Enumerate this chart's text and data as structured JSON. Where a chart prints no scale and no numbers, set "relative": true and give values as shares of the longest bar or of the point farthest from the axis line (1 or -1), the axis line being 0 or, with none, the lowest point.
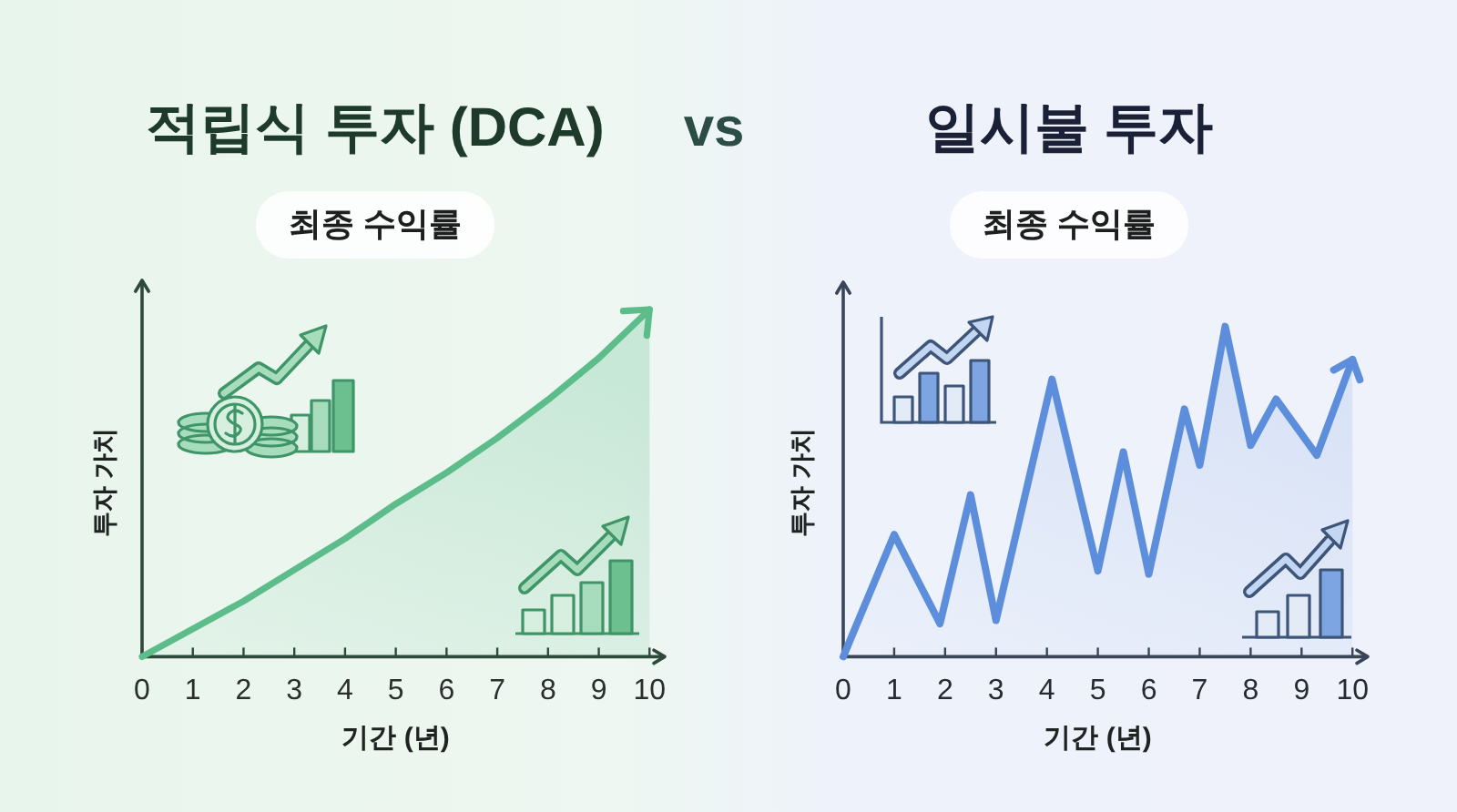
{
  "chart_data": [
    {
      "type": "area",
      "title": "적립식 투자 (DCA)",
      "subtitle": "최종 수익률",
      "xlabel": "기간 (년)",
      "ylabel": "투자 가치",
      "annotations": [
        "vs"
      ],
      "relative": true,
      "color": "#5cbd8b",
      "x": [
        0,
        1,
        2,
        3,
        4,
        5,
        6,
        7,
        8,
        9,
        10
      ],
      "values": [
        0,
        0.08,
        0.16,
        0.25,
        0.34,
        0.44,
        0.53,
        0.63,
        0.74,
        0.86,
        1
      ],
      "xlim": [
        0,
        10.3
      ],
      "xticks": [
        0,
        1,
        2,
        3,
        4,
        5,
        6,
        7,
        8,
        9,
        10
      ]
    },
    {
      "type": "area",
      "title": "일시불 투자",
      "subtitle": "최종 수익률",
      "xlabel": "기간 (년)",
      "ylabel": "투자 가치",
      "relative": true,
      "color": "#5c8edb",
      "x": [
        0,
        1,
        1.9,
        2.5,
        3,
        4.1,
        5,
        5.5,
        6,
        6.7,
        7,
        7.5,
        8,
        8.5,
        9.3,
        10
      ],
      "values": [
        0,
        0.37,
        0.1,
        0.49,
        0.11,
        0.84,
        0.26,
        0.62,
        0.25,
        0.75,
        0.58,
        1,
        0.64,
        0.78,
        0.61,
        0.9
      ],
      "xlim": [
        0,
        10.3
      ],
      "xticks": [
        0,
        1,
        2,
        3,
        4,
        5,
        6,
        7,
        8,
        9,
        10
      ]
    }
  ]
}
